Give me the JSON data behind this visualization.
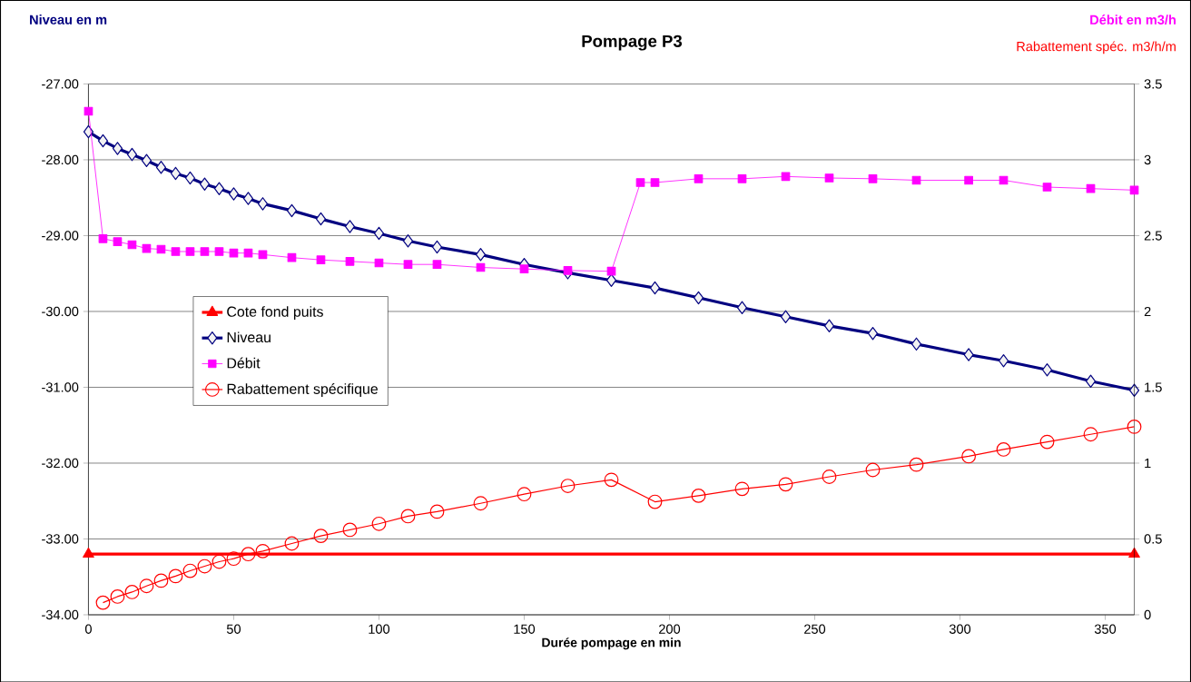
{
  "chart_data": {
    "type": "line",
    "title": "Pompage P3",
    "xlabel": "Durée pompage en min",
    "ylabel": "Niveau en m",
    "y2label": "Débit en m3/h",
    "annotations": [
      "Rabattement spéc. m3/h/m"
    ],
    "xlim": [
      0,
      360
    ],
    "xticks": [
      0,
      50,
      100,
      150,
      200,
      250,
      300,
      350
    ],
    "ylim": [
      -34,
      -27
    ],
    "yticks": [
      {
        "value": -34,
        "label": "-34.00"
      },
      {
        "value": -33,
        "label": "-33.00"
      },
      {
        "value": -32,
        "label": "-32.00"
      },
      {
        "value": -31,
        "label": "-31.00"
      },
      {
        "value": -30,
        "label": "-30.00"
      },
      {
        "value": -29,
        "label": "-29.00"
      },
      {
        "value": -28,
        "label": "-28.00"
      },
      {
        "value": -27,
        "label": "-27.00"
      }
    ],
    "y2lim": [
      0,
      3.5
    ],
    "y2ticks": [
      0,
      0.5,
      1,
      1.5,
      2,
      2.5,
      3,
      3.5
    ],
    "grid": "y",
    "legend": "left",
    "series": [
      {
        "name": "Cote fond puits",
        "color": "#ff0000",
        "marker": "triangle",
        "axis": "y",
        "x": [
          0,
          360
        ],
        "values": [
          -33.2,
          -33.2
        ]
      },
      {
        "name": "Niveau",
        "color": "#000080",
        "marker": "diamond",
        "axis": "y",
        "x": [
          0,
          5,
          10,
          15,
          20,
          25,
          30,
          35,
          40,
          45,
          50,
          55,
          60,
          70,
          80,
          90,
          100,
          110,
          120,
          135,
          150,
          165,
          180,
          195,
          210,
          225,
          240,
          255,
          270,
          285,
          303,
          315,
          330,
          345,
          360
        ],
        "values": [
          -27.63,
          -27.75,
          -27.85,
          -27.93,
          -28.01,
          -28.1,
          -28.18,
          -28.24,
          -28.32,
          -28.38,
          -28.45,
          -28.51,
          -28.58,
          -28.67,
          -28.78,
          -28.88,
          -28.97,
          -29.07,
          -29.15,
          -29.25,
          -29.38,
          -29.49,
          -29.59,
          -29.69,
          -29.82,
          -29.95,
          -30.07,
          -30.19,
          -30.29,
          -30.43,
          -30.57,
          -30.65,
          -30.77,
          -30.92,
          -31.04
        ]
      },
      {
        "name": "Débit",
        "color": "#ff00ff",
        "marker": "square",
        "axis": "y2",
        "x": [
          0,
          5,
          10,
          15,
          20,
          25,
          30,
          35,
          40,
          45,
          50,
          55,
          60,
          70,
          80,
          90,
          100,
          110,
          120,
          135,
          150,
          165,
          180,
          190,
          195,
          210,
          225,
          240,
          255,
          270,
          285,
          303,
          315,
          330,
          345,
          360
        ],
        "values": [
          3.32,
          2.48,
          2.46,
          2.44,
          2.415,
          2.41,
          2.395,
          2.395,
          2.395,
          2.395,
          2.385,
          2.385,
          2.375,
          2.355,
          2.34,
          2.33,
          2.32,
          2.31,
          2.31,
          2.29,
          2.28,
          2.27,
          2.265,
          2.85,
          2.85,
          2.875,
          2.875,
          2.89,
          2.88,
          2.875,
          2.865,
          2.865,
          2.865,
          2.82,
          2.81,
          2.8
        ]
      },
      {
        "name": "Rabattement spécifique",
        "color": "#ff0000",
        "marker": "circle",
        "axis": "y2",
        "x": [
          5,
          10,
          15,
          20,
          25,
          30,
          35,
          40,
          45,
          50,
          55,
          60,
          70,
          80,
          90,
          100,
          110,
          120,
          135,
          150,
          165,
          180,
          195,
          210,
          225,
          240,
          255,
          270,
          285,
          303,
          315,
          330,
          345,
          360
        ],
        "values": [
          0.08,
          0.12,
          0.15,
          0.19,
          0.225,
          0.255,
          0.29,
          0.32,
          0.35,
          0.37,
          0.4,
          0.42,
          0.47,
          0.52,
          0.56,
          0.6,
          0.65,
          0.68,
          0.735,
          0.795,
          0.85,
          0.89,
          0.745,
          0.785,
          0.83,
          0.86,
          0.91,
          0.955,
          0.99,
          1.045,
          1.09,
          1.14,
          1.19,
          1.24
        ]
      }
    ]
  }
}
